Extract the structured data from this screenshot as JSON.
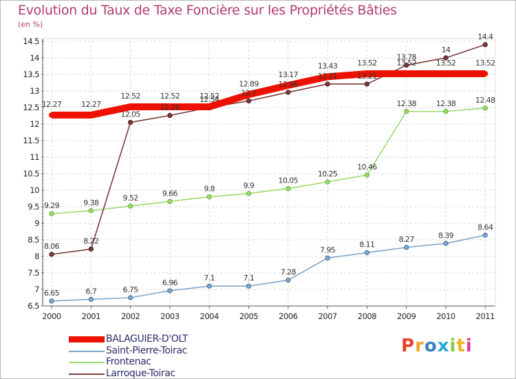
{
  "title": "Evolution du Taux de Taxe Foncière sur les Propriétés Bâties",
  "unit": "(en %)",
  "logo": {
    "text": "Proxiti",
    "colors": [
      "#e8422c",
      "#f7a12a",
      "#3a7fc1",
      "#2aa7d9",
      "#8cc63f",
      "#f0b21e",
      "#e03a95"
    ]
  },
  "chart_data": {
    "type": "line",
    "title": "Evolution du Taux de Taxe Foncière sur les Propriétés Bâties",
    "ylabel": "(en %)",
    "xlabel": "",
    "ylim": [
      6.5,
      14.5
    ],
    "yticks": [
      "6.5",
      "7",
      "7.5",
      "8",
      "8.5",
      "9",
      "9.5",
      "10",
      "10.5",
      "11",
      "11.5",
      "12",
      "12.5",
      "13",
      "13.5",
      "14",
      "14.5"
    ],
    "categories": [
      "2000",
      "2001",
      "2002",
      "2003",
      "2004",
      "2005",
      "2006",
      "2007",
      "2008",
      "2009",
      "2010",
      "2011"
    ],
    "legend_position": "bottom-left",
    "series": [
      {
        "name": "BALAGUIER-D'OLT",
        "color": "#ee1100",
        "values": [
          12.27,
          12.27,
          12.52,
          12.52,
          12.52,
          12.89,
          13.17,
          13.43,
          13.52,
          13.52,
          13.52,
          13.52
        ],
        "labels": [
          "12.27",
          "12.27",
          "12.52",
          "12.52",
          "12.52",
          "12.89",
          "13.17",
          "13.43",
          "13.52",
          "13.52",
          "13.52",
          "13.52"
        ]
      },
      {
        "name": "Saint-Pierre-Toirac",
        "color": "#7ea6cc",
        "values": [
          6.65,
          6.7,
          6.75,
          6.96,
          7.1,
          7.1,
          7.28,
          7.95,
          8.11,
          8.27,
          8.39,
          8.64
        ],
        "labels": [
          "6.65",
          "6.7",
          "6.75",
          "6.96",
          "7.1",
          "7.1",
          "7.28",
          "7.95",
          "8.11",
          "8.27",
          "8.39",
          "8.64"
        ]
      },
      {
        "name": "Frontenac",
        "color": "#9adc6a",
        "values": [
          9.29,
          9.38,
          9.52,
          9.66,
          9.8,
          9.9,
          10.05,
          10.25,
          10.46,
          12.38,
          12.38,
          12.48
        ],
        "labels": [
          "9.29",
          "9.38",
          "9.52",
          "9.66",
          "9.8",
          "9.9",
          "10.05",
          "10.25",
          "10.46",
          "12.38",
          "12.38",
          "12.48"
        ]
      },
      {
        "name": "Larroque-Toirac",
        "color": "#7a3a3a",
        "values": [
          8.06,
          8.22,
          12.05,
          12.26,
          12.5,
          12.7,
          12.96,
          13.21,
          13.21,
          13.78,
          14.0,
          14.4
        ],
        "labels": [
          "8.06",
          "8.22",
          "12.05",
          "12.26",
          "12.54",
          "12.7",
          "12.96",
          "13.21",
          "13.21",
          "13.78",
          "14",
          "14.4"
        ]
      }
    ]
  }
}
